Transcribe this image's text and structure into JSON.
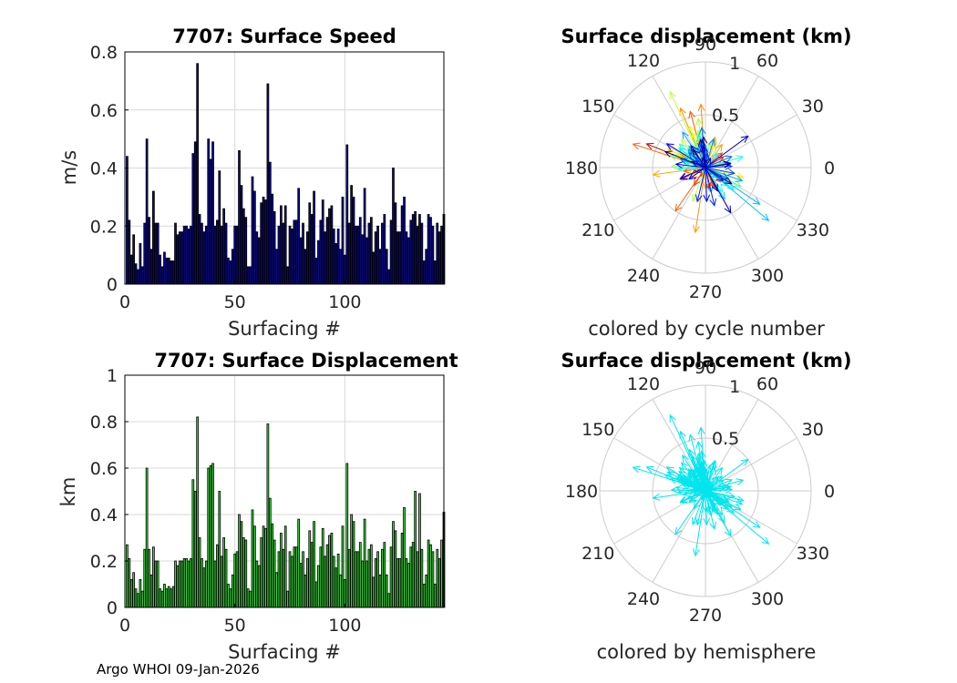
{
  "footer": "Argo WHOI 09-Jan-2026",
  "colors": {
    "speed_bar": "#0a0a8c",
    "disp_bar": "#3cdc3c",
    "bar_edge": "#000000",
    "grid": "#d9d9d9",
    "polar_grid": "#cccccc",
    "hemisphere_arrow": "#00e5ee"
  },
  "chart_data": [
    {
      "type": "bar",
      "title": "7707: Surface Speed",
      "xlabel": "Surfacing #",
      "ylabel": "m/s",
      "xlim": [
        0,
        145
      ],
      "ylim": [
        0,
        0.8
      ],
      "xticks": [
        0,
        50,
        100
      ],
      "xtick_labels": [
        "0",
        "50",
        "100"
      ],
      "yticks": [
        0,
        0.2,
        0.4,
        0.6,
        0.8
      ],
      "ytick_labels": [
        "0",
        "0.2",
        "0.4",
        "0.6",
        "0.8"
      ],
      "grid": true,
      "values": [
        0.44,
        0.22,
        0.1,
        0.17,
        0.07,
        0.05,
        0.14,
        0.06,
        0.21,
        0.5,
        0.23,
        0.12,
        0.32,
        0.21,
        0.21,
        0.1,
        0.06,
        0.11,
        0.09,
        0.09,
        0.08,
        0.08,
        0.21,
        0.17,
        0.18,
        0.18,
        0.2,
        0.2,
        0.19,
        0.2,
        0.45,
        0.49,
        0.76,
        0.24,
        0.21,
        0.18,
        0.2,
        0.5,
        0.43,
        0.49,
        0.2,
        0.22,
        0.39,
        0.2,
        0.26,
        0.21,
        0.09,
        0.08,
        0.12,
        0.2,
        0.2,
        0.46,
        0.34,
        0.26,
        0.23,
        0.06,
        0.06,
        0.37,
        0.32,
        0.18,
        0.16,
        0.28,
        0.3,
        0.29,
        0.69,
        0.42,
        0.31,
        0.25,
        0.12,
        0.2,
        0.27,
        0.21,
        0.27,
        0.06,
        0.2,
        0.19,
        0.22,
        0.22,
        0.33,
        0.16,
        0.21,
        0.12,
        0.18,
        0.28,
        0.24,
        0.32,
        0.09,
        0.15,
        0.22,
        0.29,
        0.18,
        0.23,
        0.26,
        0.27,
        0.19,
        0.14,
        0.19,
        0.12,
        0.3,
        0.1,
        0.48,
        0.21,
        0.34,
        0.3,
        0.2,
        0.2,
        0.23,
        0.17,
        0.33,
        0.16,
        0.21,
        0.23,
        0.11,
        0.18,
        0.2,
        0.12,
        0.21,
        0.24,
        0.12,
        0.05,
        0.22,
        0.4,
        0.28,
        0.18,
        0.18,
        0.27,
        0.3,
        0.18,
        0.16,
        0.22,
        0.24,
        0.25,
        0.2,
        0.24,
        0.21,
        0.08,
        0.12,
        0.24,
        0.23,
        0.2,
        0.08,
        0.21,
        0.18,
        0.2,
        0.24
      ]
    },
    {
      "type": "bar",
      "title": "7707: Surface Displacement",
      "xlabel": "Surfacing #",
      "ylabel": "km",
      "xlim": [
        0,
        145
      ],
      "ylim": [
        0,
        1
      ],
      "xticks": [
        0,
        50,
        100
      ],
      "xtick_labels": [
        "0",
        "50",
        "100"
      ],
      "yticks": [
        0,
        0.2,
        0.4,
        0.6,
        0.8,
        1
      ],
      "ytick_labels": [
        "0",
        "0.2",
        "0.4",
        "0.6",
        "0.8",
        "1"
      ],
      "grid": true,
      "values": [
        0.27,
        0.21,
        0.12,
        0.15,
        0.08,
        0.06,
        0.12,
        0.07,
        0.25,
        0.6,
        0.25,
        0.14,
        0.26,
        0.2,
        0.2,
        0.08,
        0.07,
        0.1,
        0.08,
        0.09,
        0.08,
        0.09,
        0.2,
        0.18,
        0.2,
        0.2,
        0.21,
        0.21,
        0.2,
        0.21,
        0.55,
        0.5,
        0.82,
        0.3,
        0.21,
        0.17,
        0.2,
        0.6,
        0.61,
        0.62,
        0.2,
        0.27,
        0.5,
        0.22,
        0.3,
        0.25,
        0.1,
        0.08,
        0.14,
        0.23,
        0.24,
        0.4,
        0.37,
        0.3,
        0.29,
        0.08,
        0.07,
        0.42,
        0.35,
        0.2,
        0.18,
        0.3,
        0.35,
        0.34,
        0.79,
        0.47,
        0.36,
        0.29,
        0.15,
        0.24,
        0.32,
        0.25,
        0.35,
        0.07,
        0.24,
        0.22,
        0.26,
        0.26,
        0.38,
        0.19,
        0.24,
        0.14,
        0.21,
        0.33,
        0.28,
        0.37,
        0.11,
        0.18,
        0.26,
        0.34,
        0.22,
        0.27,
        0.31,
        0.32,
        0.22,
        0.17,
        0.23,
        0.14,
        0.35,
        0.12,
        0.62,
        0.25,
        0.4,
        0.37,
        0.24,
        0.24,
        0.28,
        0.2,
        0.38,
        0.2,
        0.25,
        0.27,
        0.13,
        0.21,
        0.24,
        0.14,
        0.25,
        0.28,
        0.14,
        0.06,
        0.26,
        0.37,
        0.33,
        0.21,
        0.21,
        0.32,
        0.43,
        0.21,
        0.19,
        0.26,
        0.28,
        0.5,
        0.24,
        0.49,
        0.25,
        0.1,
        0.14,
        0.29,
        0.27,
        0.24,
        0.1,
        0.25,
        0.21,
        0.29,
        0.41
      ]
    },
    {
      "type": "polar-quiver",
      "title": "Surface displacement (km)",
      "subtitle": "colored by cycle number",
      "rlim": [
        0,
        1
      ],
      "radial_ticks": [
        "0.5",
        "1"
      ],
      "radial_tick_values": [
        0.5,
        1
      ],
      "angle_ticks": [
        0,
        30,
        60,
        90,
        120,
        150,
        180,
        210,
        240,
        270,
        300,
        330
      ],
      "angle_tick_labels": [
        "0",
        "30",
        "60",
        "90",
        "120",
        "150",
        "180",
        "210",
        "240",
        "270",
        "300",
        "330"
      ],
      "color_mode": "cycle"
    },
    {
      "type": "polar-quiver",
      "title": "Surface displacement (km)",
      "subtitle": "colored by hemisphere",
      "rlim": [
        0,
        1
      ],
      "radial_ticks": [
        "0.5",
        "1"
      ],
      "radial_tick_values": [
        0.5,
        1
      ],
      "angle_ticks": [
        0,
        30,
        60,
        90,
        120,
        150,
        180,
        210,
        240,
        270,
        300,
        330
      ],
      "angle_tick_labels": [
        "0",
        "30",
        "60",
        "90",
        "120",
        "150",
        "180",
        "210",
        "240",
        "270",
        "300",
        "330"
      ],
      "color_mode": "hemisphere"
    }
  ]
}
